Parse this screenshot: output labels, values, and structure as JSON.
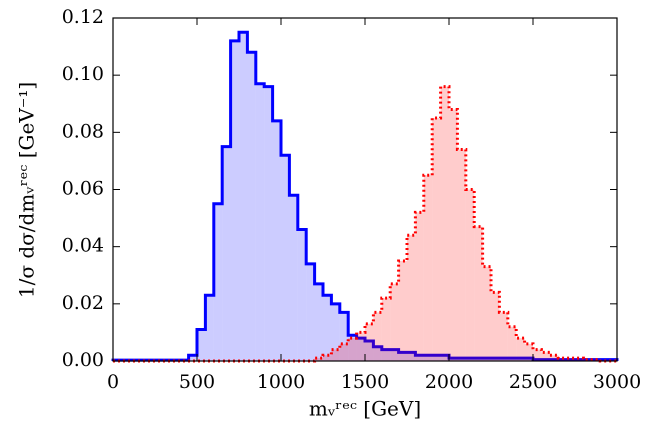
{
  "chart_data": {
    "type": "histogram",
    "x_label": "mᵥʳᵉᶜ [GeV]",
    "y_label": "1/σ dσ/dmᵥʳᵉᶜ [GeV⁻¹]",
    "bins": [
      0,
      50,
      100,
      150,
      200,
      250,
      300,
      350,
      400,
      450,
      500,
      550,
      600,
      650,
      700,
      750,
      800,
      850,
      900,
      950,
      1000,
      1050,
      1100,
      1150,
      1200,
      1250,
      1300,
      1350,
      1400,
      1450,
      1500,
      1550,
      1600,
      1650,
      1700,
      1750,
      1800,
      1850,
      1900,
      1950,
      2000,
      2050,
      2100,
      2150,
      2200,
      2250,
      2300,
      2350,
      2400,
      2450,
      2500,
      2550,
      2600,
      2650,
      2700,
      2750,
      2800,
      2850,
      2900,
      2950,
      3000
    ],
    "series": [
      {
        "color": "#0000ff",
        "line_style": "solid",
        "values": [
          0.0003,
          0.0003,
          0.0003,
          0.0003,
          0.0003,
          0.0003,
          0.0003,
          0.0003,
          0.0003,
          0.002,
          0.011,
          0.023,
          0.055,
          0.075,
          0.112,
          0.115,
          0.108,
          0.097,
          0.096,
          0.084,
          0.072,
          0.058,
          0.046,
          0.034,
          0.027,
          0.023,
          0.02,
          0.017,
          0.009,
          0.008,
          0.007,
          0.005,
          0.004,
          0.004,
          0.003,
          0.003,
          0.002,
          0.002,
          0.002,
          0.002,
          0.001,
          0.001,
          0.001,
          0.001,
          0.001,
          0.001,
          0.001,
          0.001,
          0.001,
          0.001,
          0.0005,
          0.0005,
          0.0005,
          0.0005,
          0.0005,
          0.0005,
          0.0005,
          0.0005,
          0.0005,
          0.0005
        ]
      },
      {
        "color": "#ff0000",
        "line_style": "dotted",
        "values": [
          0,
          0,
          0,
          0,
          0,
          0,
          0,
          0,
          0,
          0,
          0,
          0,
          0,
          0,
          0,
          0,
          0,
          0,
          0,
          0,
          0,
          0,
          0,
          0,
          0.001,
          0.002,
          0.004,
          0.006,
          0.008,
          0.01,
          0.013,
          0.017,
          0.022,
          0.027,
          0.035,
          0.044,
          0.052,
          0.065,
          0.085,
          0.096,
          0.088,
          0.074,
          0.06,
          0.047,
          0.033,
          0.024,
          0.017,
          0.012,
          0.008,
          0.006,
          0.004,
          0.003,
          0.002,
          0.001,
          0.001,
          0.001,
          0.0005,
          0.0005,
          0,
          0
        ]
      }
    ],
    "xlim": [
      0,
      3000
    ],
    "ylim": [
      0,
      0.12
    ],
    "xticks": [
      0,
      500,
      1000,
      1500,
      2000,
      2500,
      3000
    ],
    "yticks": [
      {
        "value": 0,
        "label": "0.00"
      },
      {
        "value": 0.02,
        "label": "0.02"
      },
      {
        "value": 0.04,
        "label": "0.04"
      },
      {
        "value": 0.06,
        "label": "0.06"
      },
      {
        "value": 0.08,
        "label": "0.08"
      },
      {
        "value": 0.1,
        "label": "0.10"
      },
      {
        "value": 0.12,
        "label": "0.12"
      }
    ],
    "grid": false
  }
}
